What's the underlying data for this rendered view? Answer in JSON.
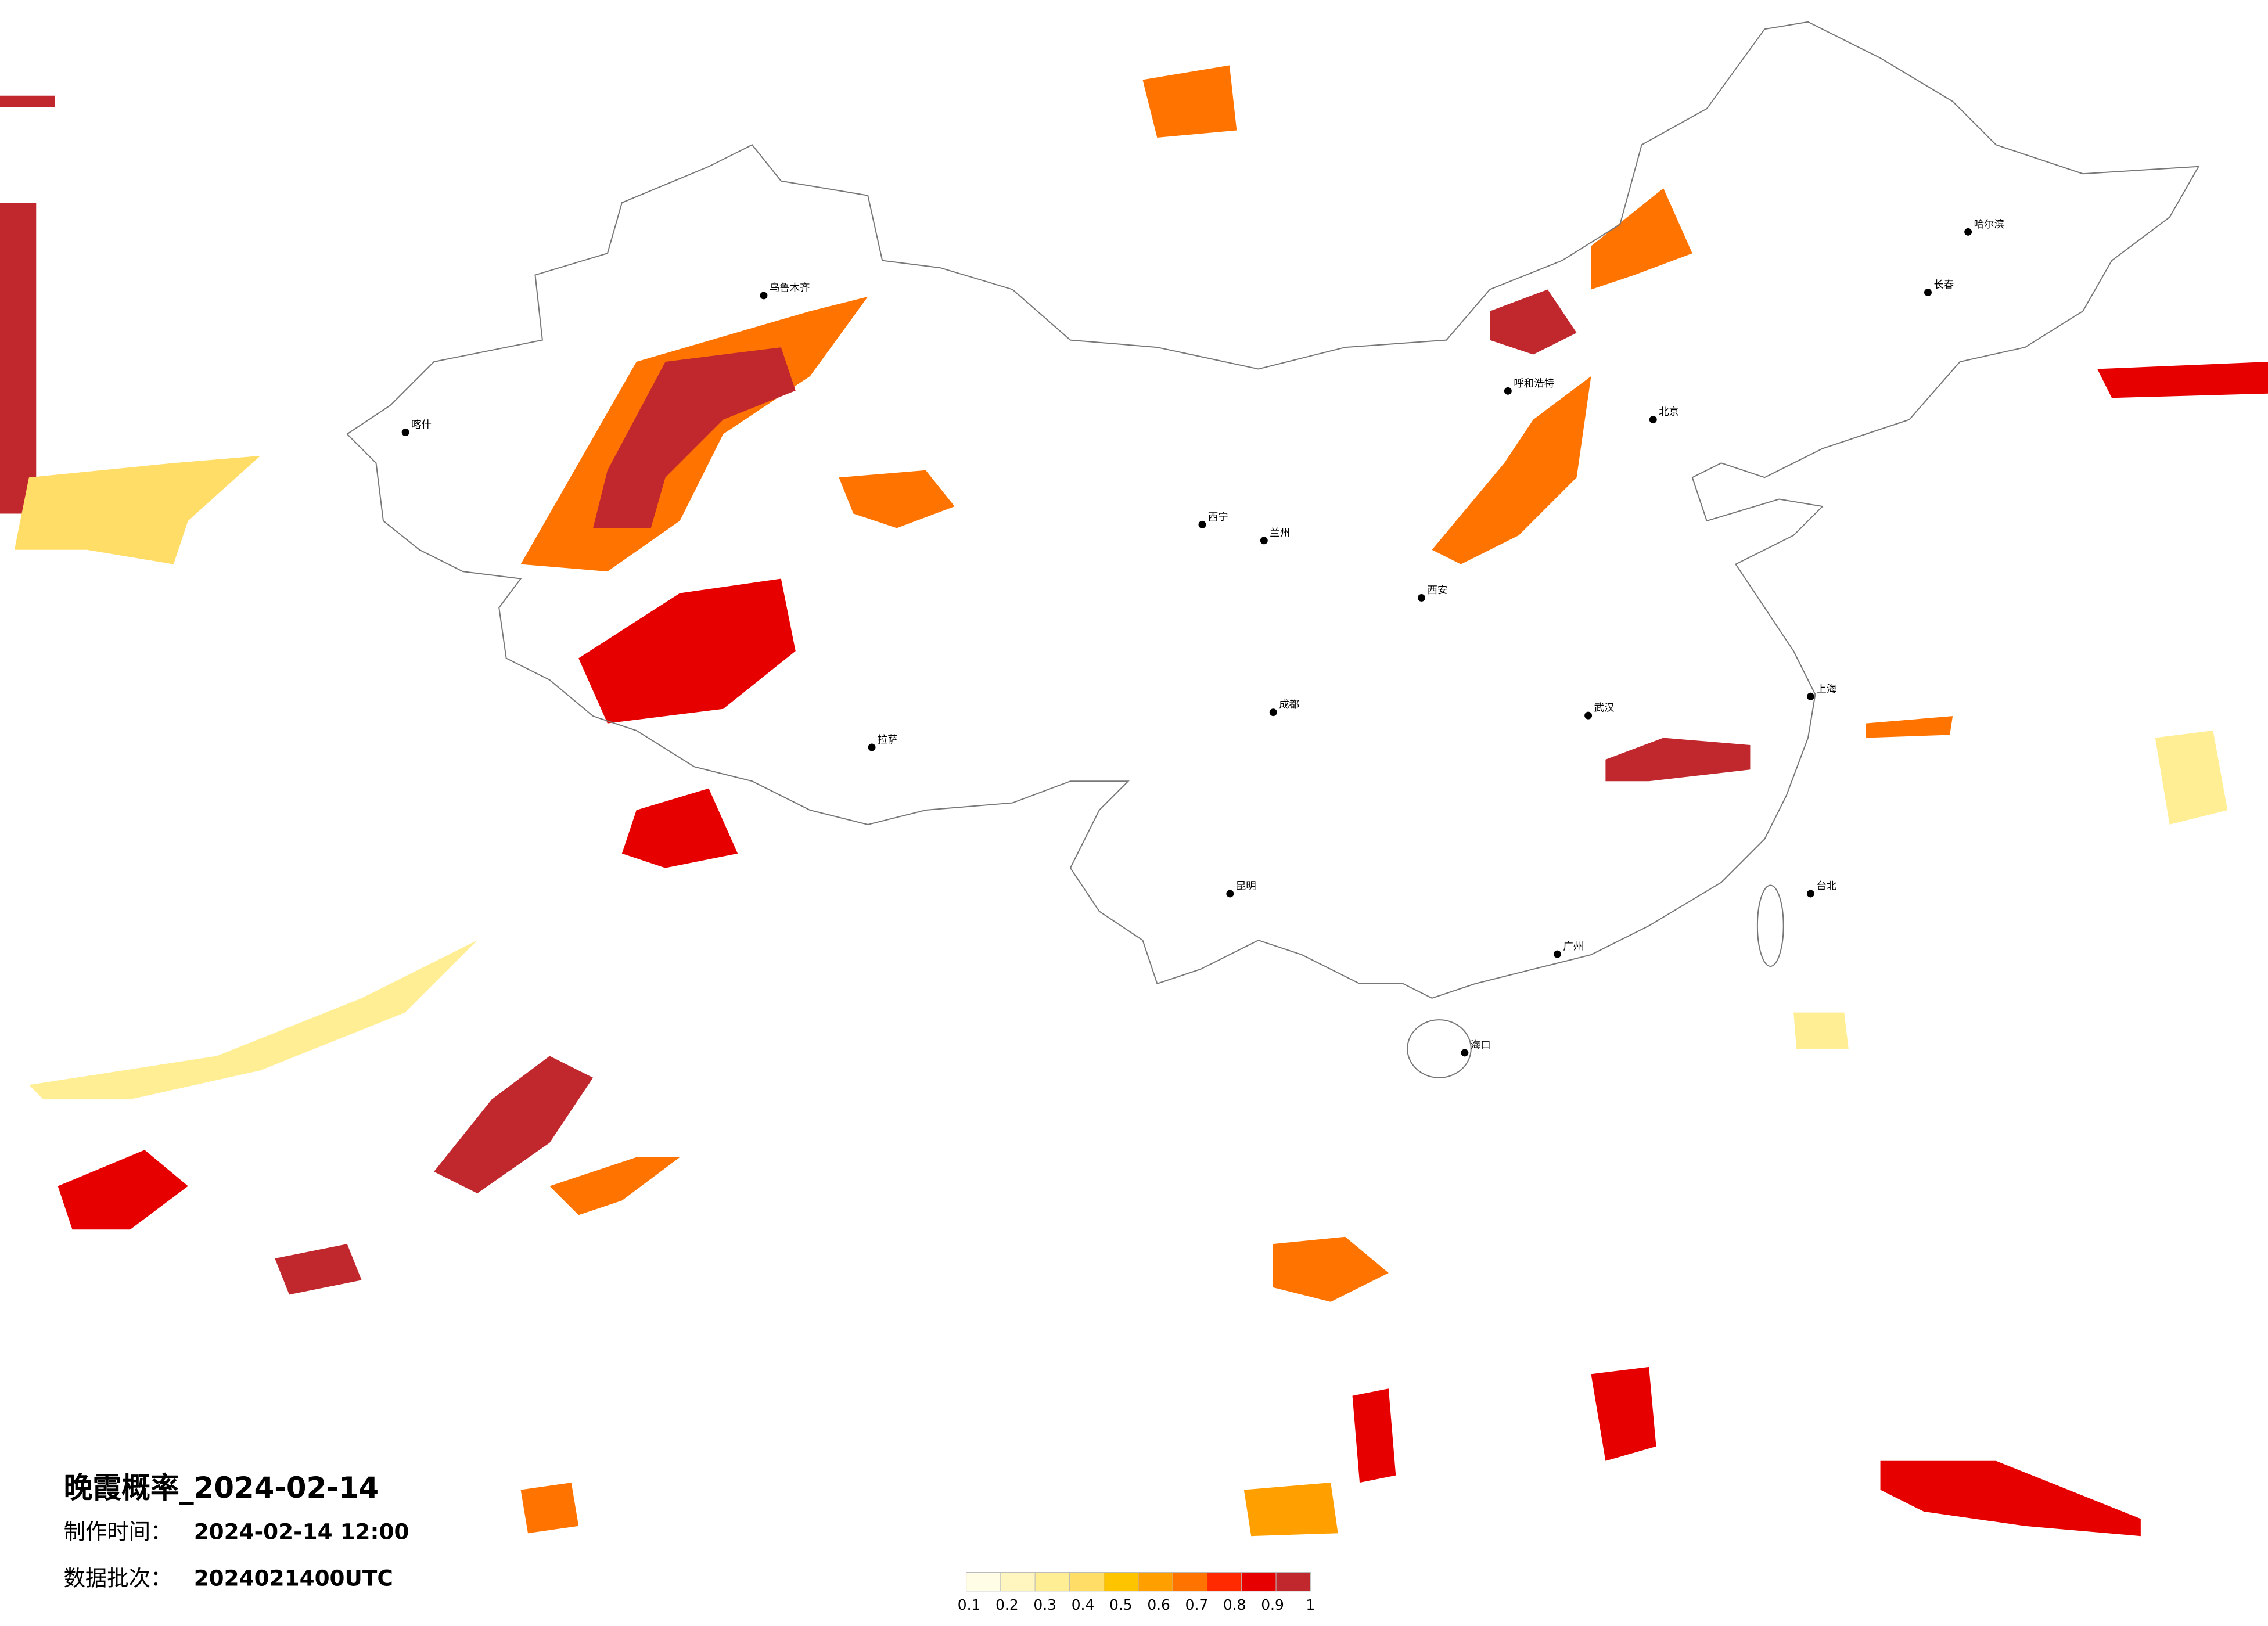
{
  "title": "晚霞概率_2024-02-14",
  "made_time": {
    "label": "制作时间：",
    "value": "2024-02-14 12:00"
  },
  "batch": {
    "label": "数据批次：",
    "value": "2024021400UTC"
  },
  "colorbar": {
    "ticks": [
      0.1,
      0.2,
      0.3,
      0.4,
      0.5,
      0.6,
      0.7,
      0.8,
      0.9,
      1
    ],
    "colors": [
      "#fffde6",
      "#fff6bf",
      "#ffee94",
      "#ffdd66",
      "#ffc400",
      "#ffa000",
      "#ff7400",
      "#ff2a00",
      "#e60000",
      "#c0282d"
    ]
  },
  "cities": [
    {
      "name": "北京",
      "lon": 116.4,
      "lat": 39.9
    },
    {
      "name": "上海",
      "lon": 121.5,
      "lat": 31.2
    },
    {
      "name": "乌鲁木齐",
      "lon": 87.6,
      "lat": 43.8
    },
    {
      "name": "拉萨",
      "lon": 91.1,
      "lat": 29.6
    },
    {
      "name": "哈尔滨",
      "lon": 126.6,
      "lat": 45.8
    },
    {
      "name": "广州",
      "lon": 113.3,
      "lat": 23.1
    },
    {
      "name": "昆明",
      "lon": 102.7,
      "lat": 25.0
    },
    {
      "name": "成都",
      "lon": 104.1,
      "lat": 30.7
    },
    {
      "name": "西安",
      "lon": 108.9,
      "lat": 34.3
    },
    {
      "name": "武汉",
      "lon": 114.3,
      "lat": 30.6
    },
    {
      "name": "兰州",
      "lon": 103.8,
      "lat": 36.1
    },
    {
      "name": "呼和浩特",
      "lon": 111.7,
      "lat": 40.8
    },
    {
      "name": "长春",
      "lon": 125.3,
      "lat": 43.9
    },
    {
      "name": "海口",
      "lon": 110.3,
      "lat": 20.0
    },
    {
      "name": "台北",
      "lon": 121.5,
      "lat": 25.0
    },
    {
      "name": "西宁",
      "lon": 101.8,
      "lat": 36.6
    },
    {
      "name": "喀什",
      "lon": 76.0,
      "lat": 39.5
    }
  ]
}
